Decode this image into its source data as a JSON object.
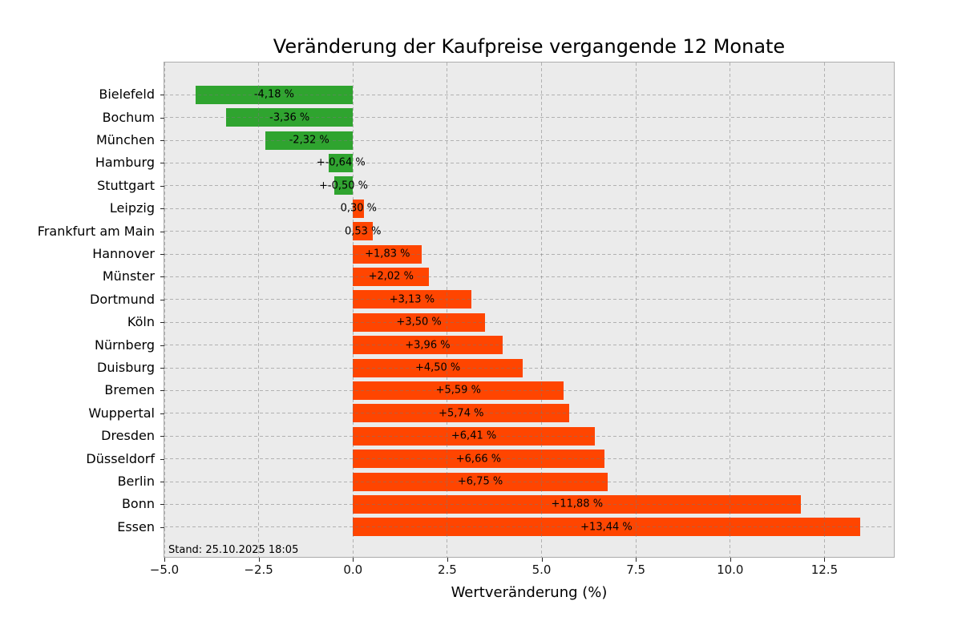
{
  "chart_data": {
    "type": "bar",
    "orientation": "horizontal",
    "title": "Veränderung der Kaufpreise vergangende 12 Monate",
    "xlabel": "Wertveränderung (%)",
    "annotation": "Stand: 25.10.2025 18:05",
    "categories": [
      "Bielefeld",
      "Bochum",
      "München",
      "Hamburg",
      "Stuttgart",
      "Leipzig",
      "Frankfurt am Main",
      "Hannover",
      "Münster",
      "Dortmund",
      "Köln",
      "Nürnberg",
      "Duisburg",
      "Bremen",
      "Wuppertal",
      "Dresden",
      "Düsseldorf",
      "Berlin",
      "Bonn",
      "Essen"
    ],
    "values": [
      -4.18,
      -3.36,
      -2.32,
      -0.64,
      -0.5,
      0.3,
      0.53,
      1.83,
      2.02,
      3.13,
      3.5,
      3.96,
      4.5,
      5.59,
      5.74,
      6.41,
      6.66,
      6.75,
      11.88,
      13.44
    ],
    "bar_labels": [
      "-4,18 %",
      "-3,36 %",
      "-2,32 %",
      "+-0,64 %",
      "+-0,50 %",
      "0,30 %",
      "0,53 %",
      "+1,83 %",
      "+2,02 %",
      "+3,13 %",
      "+3,50 %",
      "+3,96 %",
      "+4,50 %",
      "+5,59 %",
      "+5,74 %",
      "+6,41 %",
      "+6,66 %",
      "+6,75 %",
      "+11,88 %",
      "+13,44 %"
    ],
    "xticks": [
      -5.0,
      -2.5,
      0.0,
      2.5,
      5.0,
      7.5,
      10.0,
      12.5
    ],
    "xtick_labels": [
      "−5.0",
      "−2.5",
      "0.0",
      "2.5",
      "5.0",
      "7.5",
      "10.0",
      "12.5"
    ],
    "xlim": [
      -5.0,
      14.34
    ],
    "grid": "dashed, drawn over bars",
    "legend": "none",
    "colors": {
      "negative_bar": "#2fa42f",
      "positive_bar": "#ff4500",
      "plot_background": "#ebebeb",
      "figure_background": "#ffffff"
    }
  }
}
